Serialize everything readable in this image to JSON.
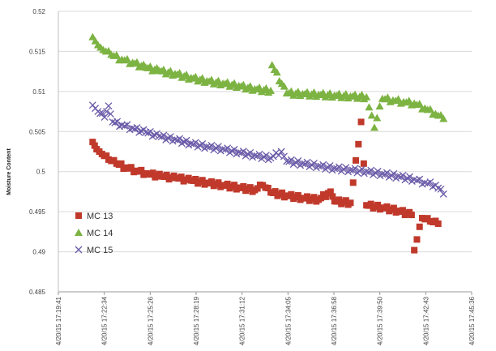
{
  "chart_data": {
    "type": "scatter",
    "title": "",
    "xlabel": "",
    "ylabel": "Moisture Content",
    "ylim": [
      0.485,
      0.52
    ],
    "y_ticks": [
      "0.485",
      "0.49",
      "0.495",
      "0.5",
      "0.505",
      "0.51",
      "0.515",
      "0.52"
    ],
    "x_ticks": [
      "4/20/15 17:19:41",
      "4/20/15 17:22:34",
      "4/20/15 17:25:26",
      "4/20/15 17:28:19",
      "4/20/15 17:31:12",
      "4/20/15 17:34:05",
      "4/20/15 17:36:58",
      "4/20/15 17:39:50",
      "4/20/15 17:42:43",
      "4/20/15 17:45:36"
    ],
    "x_range": [
      "17:19:41",
      "17:45:36"
    ],
    "grid": "horizontal",
    "legend_position": "bottom-left",
    "series": [
      {
        "name": "MC 13",
        "marker": "square",
        "color": "#c0392b",
        "x": [
          "17:21:50",
          "17:22:05",
          "17:22:25",
          "17:22:50",
          "17:23:20",
          "17:23:55",
          "17:24:35",
          "17:25:20",
          "17:26:10",
          "17:27:05",
          "17:28:00",
          "17:29:00",
          "17:30:00",
          "17:31:00",
          "17:32:00",
          "17:33:00",
          "17:34:00",
          "17:35:00",
          "17:36:00",
          "17:37:00",
          "17:38:00",
          "17:39:00",
          "17:40:00",
          "17:41:00",
          "17:41:50",
          "17:42:30",
          "17:43:00",
          "17:43:30",
          "17:32:30",
          "17:36:45",
          "17:38:40",
          "17:42:00"
        ],
        "y": [
          0.5037,
          0.5028,
          0.5022,
          0.5015,
          0.501,
          0.5005,
          0.5001,
          0.4997,
          0.4994,
          0.4992,
          0.4989,
          0.4986,
          0.4983,
          0.498,
          0.4977,
          0.4974,
          0.497,
          0.4967,
          0.4965,
          0.4963,
          0.4961,
          0.4958,
          0.4955,
          0.4951,
          0.4946,
          0.4942,
          0.4938,
          0.4935,
          0.4983,
          0.4975,
          0.5062,
          0.4902
        ]
      },
      {
        "name": "MC 14",
        "marker": "triangle",
        "color": "#7cb342",
        "x": [
          "17:21:50",
          "17:22:10",
          "17:22:30",
          "17:23:00",
          "17:23:40",
          "17:24:20",
          "17:25:10",
          "17:26:00",
          "17:27:00",
          "17:28:00",
          "17:29:00",
          "17:30:00",
          "17:31:00",
          "17:32:00",
          "17:33:00",
          "17:34:00",
          "17:35:00",
          "17:36:00",
          "17:37:00",
          "17:38:00",
          "17:39:00",
          "17:40:00",
          "17:40:40",
          "17:41:20",
          "17:42:00",
          "17:42:40",
          "17:43:20",
          "17:43:50",
          "17:33:05",
          "17:39:30"
        ],
        "y": [
          0.5168,
          0.5158,
          0.5152,
          0.5146,
          0.514,
          0.5136,
          0.513,
          0.5126,
          0.5122,
          0.5117,
          0.5113,
          0.511,
          0.5107,
          0.5103,
          0.5101,
          0.5098,
          0.5097,
          0.5096,
          0.5095,
          0.5094,
          0.5093,
          0.5091,
          0.5089,
          0.5087,
          0.5085,
          0.5079,
          0.5072,
          0.5066,
          0.5133,
          0.5055
        ]
      },
      {
        "name": "MC 15",
        "marker": "x",
        "color": "#6a5aa8",
        "x": [
          "17:21:50",
          "17:22:10",
          "17:22:35",
          "17:23:05",
          "17:23:40",
          "17:24:20",
          "17:25:10",
          "17:26:00",
          "17:27:00",
          "17:28:00",
          "17:29:00",
          "17:30:00",
          "17:31:00",
          "17:32:00",
          "17:33:00",
          "17:34:00",
          "17:35:00",
          "17:36:00",
          "17:37:00",
          "17:38:00",
          "17:39:00",
          "17:40:00",
          "17:41:00",
          "17:42:00",
          "17:42:40",
          "17:43:20",
          "17:43:50",
          "17:22:50",
          "17:33:40"
        ],
        "y": [
          0.5083,
          0.5075,
          0.5068,
          0.5062,
          0.5058,
          0.5054,
          0.5049,
          0.5044,
          0.504,
          0.5035,
          0.5031,
          0.5028,
          0.5024,
          0.502,
          0.5017,
          0.5013,
          0.501,
          0.5007,
          0.5004,
          0.5002,
          0.5,
          0.4997,
          0.4994,
          0.499,
          0.4986,
          0.4983,
          0.4972,
          0.5082,
          0.5025
        ]
      }
    ]
  }
}
